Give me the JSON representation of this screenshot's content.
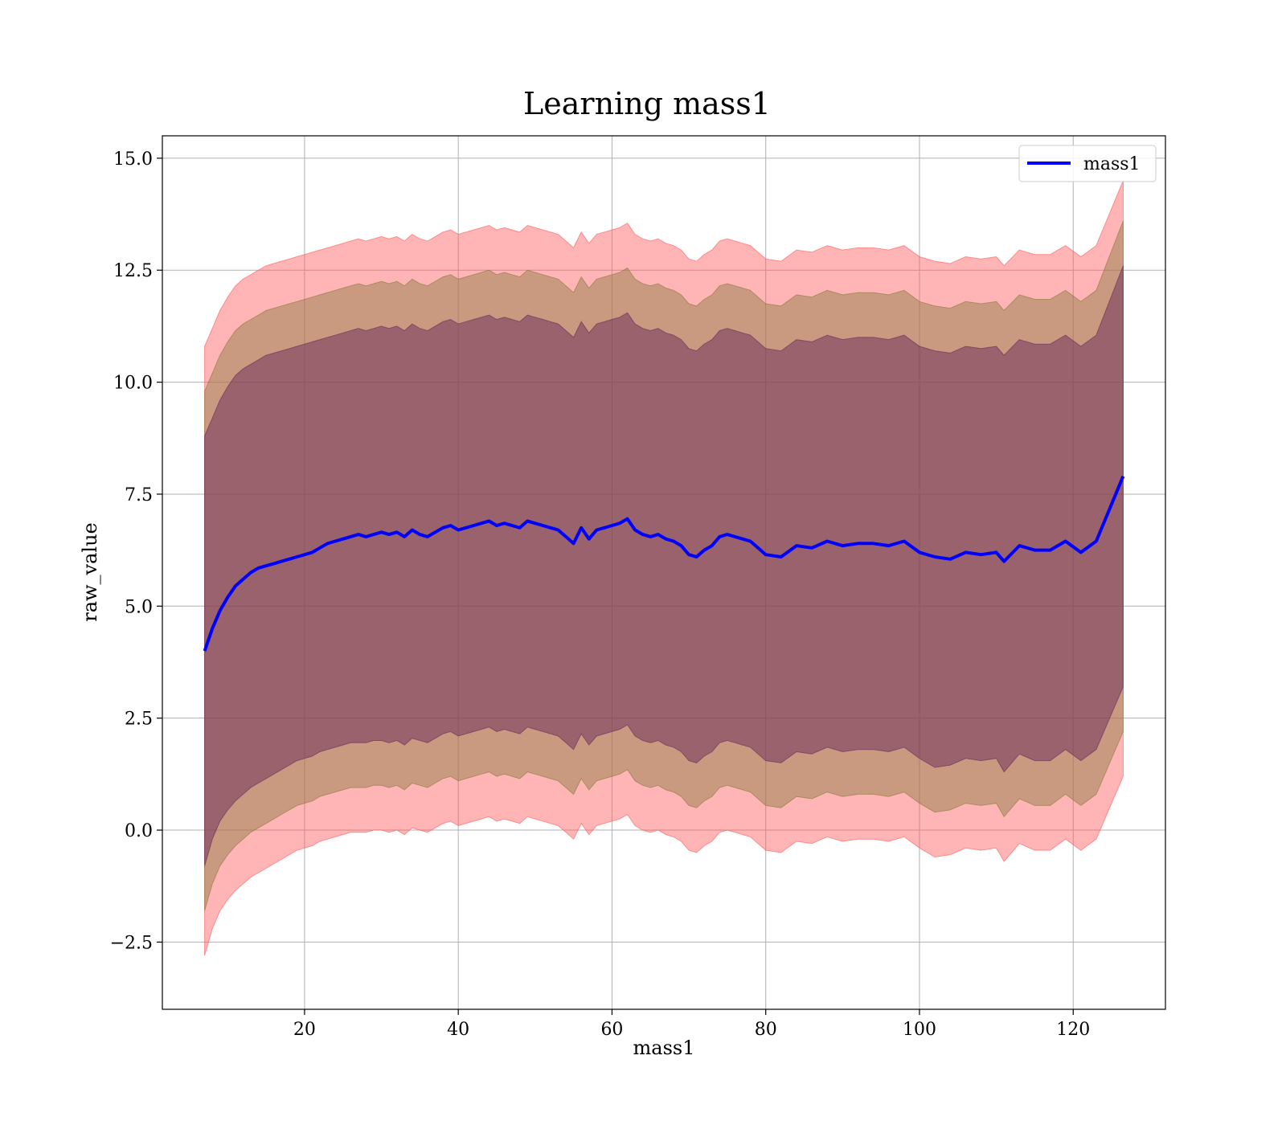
{
  "chart_data": {
    "type": "line",
    "title": "Learning mass1",
    "xlabel": "mass1",
    "ylabel": "raw_value",
    "xlim": [
      1.5,
      132
    ],
    "ylim": [
      -4.0,
      15.5
    ],
    "x_ticks": [
      20,
      40,
      60,
      80,
      100,
      120
    ],
    "y_ticks": [
      -2.5,
      0.0,
      2.5,
      5.0,
      7.5,
      10.0,
      12.5,
      15.0
    ],
    "x_tick_labels": [
      "20",
      "40",
      "60",
      "80",
      "100",
      "120"
    ],
    "y_tick_labels": [
      "−2.5",
      "0.0",
      "2.5",
      "5.0",
      "7.5",
      "10.0",
      "12.5",
      "15.0"
    ],
    "grid": true,
    "legend_position": "top-right",
    "series": [
      {
        "name": "mass1",
        "color": "#0000ff",
        "x": [
          7,
          8,
          9,
          10,
          11,
          12,
          13,
          14,
          15,
          16,
          17,
          18,
          19,
          20,
          21,
          22,
          23,
          24,
          25,
          26,
          27,
          28,
          29,
          30,
          31,
          32,
          33,
          34,
          35,
          36,
          37,
          38,
          39,
          40,
          41,
          42,
          43,
          44,
          45,
          46,
          47,
          48,
          49,
          50,
          51,
          52,
          53,
          54,
          55,
          56,
          57,
          58,
          59,
          60,
          61,
          62,
          63,
          64,
          65,
          66,
          67,
          68,
          69,
          70,
          71,
          72,
          73,
          74,
          75,
          76,
          77,
          78,
          79,
          80,
          82,
          84,
          86,
          88,
          90,
          92,
          94,
          96,
          98,
          100,
          102,
          104,
          106,
          108,
          110,
          111,
          113,
          115,
          117,
          119,
          121,
          123,
          126.5
        ],
        "y": [
          4.0,
          4.5,
          4.9,
          5.2,
          5.45,
          5.6,
          5.75,
          5.85,
          5.9,
          5.95,
          6.0,
          6.05,
          6.1,
          6.15,
          6.2,
          6.3,
          6.4,
          6.45,
          6.5,
          6.55,
          6.6,
          6.55,
          6.6,
          6.65,
          6.6,
          6.65,
          6.55,
          6.7,
          6.6,
          6.55,
          6.65,
          6.75,
          6.8,
          6.7,
          6.75,
          6.8,
          6.85,
          6.9,
          6.8,
          6.85,
          6.8,
          6.75,
          6.9,
          6.85,
          6.8,
          6.75,
          6.7,
          6.55,
          6.4,
          6.75,
          6.5,
          6.7,
          6.75,
          6.8,
          6.85,
          6.95,
          6.7,
          6.6,
          6.55,
          6.6,
          6.5,
          6.45,
          6.35,
          6.15,
          6.1,
          6.25,
          6.35,
          6.55,
          6.6,
          6.55,
          6.5,
          6.45,
          6.3,
          6.15,
          6.1,
          6.35,
          6.3,
          6.45,
          6.35,
          6.4,
          6.4,
          6.35,
          6.45,
          6.2,
          6.1,
          6.05,
          6.2,
          6.15,
          6.2,
          6.0,
          6.35,
          6.25,
          6.25,
          6.45,
          6.2,
          6.45,
          7.9
        ]
      }
    ],
    "bands": [
      {
        "name": "",
        "color": "#ff5a5a",
        "opacity": 0.45,
        "lower": [
          -2.8,
          -2.2,
          -1.8,
          -1.55,
          -1.35,
          -1.2,
          -1.05,
          -0.95,
          -0.85,
          -0.75,
          -0.65,
          -0.55,
          -0.45,
          -0.4,
          -0.35,
          -0.25,
          -0.2,
          -0.15,
          -0.1,
          -0.05,
          -0.05,
          -0.05,
          0.0,
          0.0,
          -0.05,
          0.0,
          -0.1,
          0.05,
          0.0,
          -0.05,
          0.05,
          0.15,
          0.2,
          0.1,
          0.15,
          0.2,
          0.25,
          0.3,
          0.2,
          0.25,
          0.2,
          0.15,
          0.3,
          0.25,
          0.2,
          0.15,
          0.1,
          -0.05,
          -0.2,
          0.15,
          -0.1,
          0.1,
          0.15,
          0.2,
          0.25,
          0.35,
          0.1,
          0.0,
          -0.05,
          0.0,
          -0.1,
          -0.15,
          -0.25,
          -0.45,
          -0.5,
          -0.35,
          -0.25,
          -0.05,
          0.0,
          -0.05,
          -0.1,
          -0.15,
          -0.3,
          -0.45,
          -0.5,
          -0.25,
          -0.3,
          -0.15,
          -0.25,
          -0.2,
          -0.2,
          -0.25,
          -0.15,
          -0.4,
          -0.6,
          -0.55,
          -0.4,
          -0.45,
          -0.4,
          -0.7,
          -0.3,
          -0.45,
          -0.45,
          -0.2,
          -0.45,
          -0.2,
          1.2
        ],
        "upper": [
          10.8,
          11.2,
          11.6,
          11.9,
          12.15,
          12.3,
          12.4,
          12.5,
          12.6,
          12.65,
          12.7,
          12.75,
          12.8,
          12.85,
          12.9,
          12.95,
          13.0,
          13.05,
          13.1,
          13.15,
          13.2,
          13.15,
          13.2,
          13.25,
          13.2,
          13.25,
          13.15,
          13.3,
          13.2,
          13.15,
          13.25,
          13.35,
          13.4,
          13.3,
          13.35,
          13.4,
          13.45,
          13.5,
          13.4,
          13.45,
          13.4,
          13.35,
          13.5,
          13.45,
          13.4,
          13.35,
          13.3,
          13.15,
          13.0,
          13.35,
          13.1,
          13.3,
          13.35,
          13.4,
          13.45,
          13.55,
          13.3,
          13.2,
          13.15,
          13.2,
          13.1,
          13.05,
          12.95,
          12.75,
          12.7,
          12.85,
          12.95,
          13.15,
          13.2,
          13.15,
          13.1,
          13.05,
          12.9,
          12.75,
          12.7,
          12.95,
          12.9,
          13.05,
          12.95,
          13.0,
          13.0,
          12.95,
          13.05,
          12.8,
          12.7,
          12.65,
          12.8,
          12.75,
          12.8,
          12.6,
          12.95,
          12.85,
          12.85,
          13.05,
          12.8,
          13.05,
          14.5
        ]
      },
      {
        "name": "",
        "color": "#8a7a40",
        "opacity": 0.45,
        "lower": [
          -1.8,
          -1.2,
          -0.8,
          -0.55,
          -0.35,
          -0.2,
          -0.05,
          0.05,
          0.15,
          0.25,
          0.35,
          0.45,
          0.55,
          0.6,
          0.65,
          0.75,
          0.8,
          0.85,
          0.9,
          0.95,
          0.95,
          0.95,
          1.0,
          1.0,
          0.95,
          1.0,
          0.9,
          1.05,
          1.0,
          0.95,
          1.05,
          1.15,
          1.2,
          1.1,
          1.15,
          1.2,
          1.25,
          1.3,
          1.2,
          1.25,
          1.2,
          1.15,
          1.3,
          1.25,
          1.2,
          1.15,
          1.1,
          0.95,
          0.8,
          1.15,
          0.9,
          1.1,
          1.15,
          1.2,
          1.25,
          1.35,
          1.1,
          1.0,
          0.95,
          1.0,
          0.9,
          0.85,
          0.75,
          0.55,
          0.5,
          0.65,
          0.75,
          0.95,
          1.0,
          0.95,
          0.9,
          0.85,
          0.7,
          0.55,
          0.5,
          0.75,
          0.7,
          0.85,
          0.75,
          0.8,
          0.8,
          0.75,
          0.85,
          0.6,
          0.4,
          0.45,
          0.6,
          0.55,
          0.6,
          0.3,
          0.7,
          0.55,
          0.55,
          0.8,
          0.55,
          0.8,
          2.2
        ],
        "upper": [
          9.8,
          10.2,
          10.6,
          10.9,
          11.15,
          11.3,
          11.4,
          11.5,
          11.6,
          11.65,
          11.7,
          11.75,
          11.8,
          11.85,
          11.9,
          11.95,
          12.0,
          12.05,
          12.1,
          12.15,
          12.2,
          12.15,
          12.2,
          12.25,
          12.2,
          12.25,
          12.15,
          12.3,
          12.2,
          12.15,
          12.25,
          12.35,
          12.4,
          12.3,
          12.35,
          12.4,
          12.45,
          12.5,
          12.4,
          12.45,
          12.4,
          12.35,
          12.5,
          12.45,
          12.4,
          12.35,
          12.3,
          12.15,
          12.0,
          12.35,
          12.1,
          12.3,
          12.35,
          12.4,
          12.45,
          12.55,
          12.3,
          12.2,
          12.15,
          12.2,
          12.1,
          12.05,
          11.95,
          11.75,
          11.7,
          11.85,
          11.95,
          12.15,
          12.2,
          12.15,
          12.1,
          12.05,
          11.9,
          11.75,
          11.7,
          11.95,
          11.9,
          12.05,
          11.95,
          12.0,
          12.0,
          11.95,
          12.05,
          11.8,
          11.7,
          11.65,
          11.8,
          11.75,
          11.8,
          11.6,
          11.95,
          11.85,
          11.85,
          12.05,
          11.8,
          12.05,
          13.6
        ]
      },
      {
        "name": "",
        "color": "#6a2a5a",
        "opacity": 0.5,
        "lower": [
          -0.8,
          -0.2,
          0.2,
          0.45,
          0.65,
          0.8,
          0.95,
          1.05,
          1.15,
          1.25,
          1.35,
          1.45,
          1.55,
          1.6,
          1.65,
          1.75,
          1.8,
          1.85,
          1.9,
          1.95,
          1.95,
          1.95,
          2.0,
          2.0,
          1.95,
          2.0,
          1.9,
          2.05,
          2.0,
          1.95,
          2.05,
          2.15,
          2.2,
          2.1,
          2.15,
          2.2,
          2.25,
          2.3,
          2.2,
          2.25,
          2.2,
          2.15,
          2.3,
          2.25,
          2.2,
          2.15,
          2.1,
          1.95,
          1.8,
          2.15,
          1.9,
          2.1,
          2.15,
          2.2,
          2.25,
          2.35,
          2.1,
          2.0,
          1.95,
          2.0,
          1.9,
          1.85,
          1.75,
          1.55,
          1.5,
          1.65,
          1.75,
          1.95,
          2.0,
          1.95,
          1.9,
          1.85,
          1.7,
          1.55,
          1.5,
          1.75,
          1.7,
          1.85,
          1.75,
          1.8,
          1.8,
          1.75,
          1.85,
          1.6,
          1.4,
          1.45,
          1.6,
          1.55,
          1.6,
          1.3,
          1.7,
          1.55,
          1.55,
          1.8,
          1.55,
          1.8,
          3.2
        ],
        "upper": [
          8.8,
          9.2,
          9.6,
          9.9,
          10.15,
          10.3,
          10.4,
          10.5,
          10.6,
          10.65,
          10.7,
          10.75,
          10.8,
          10.85,
          10.9,
          10.95,
          11.0,
          11.05,
          11.1,
          11.15,
          11.2,
          11.15,
          11.2,
          11.25,
          11.2,
          11.25,
          11.15,
          11.3,
          11.2,
          11.15,
          11.25,
          11.35,
          11.4,
          11.3,
          11.35,
          11.4,
          11.45,
          11.5,
          11.4,
          11.45,
          11.4,
          11.35,
          11.5,
          11.45,
          11.4,
          11.35,
          11.3,
          11.15,
          11.0,
          11.35,
          11.1,
          11.3,
          11.35,
          11.4,
          11.45,
          11.55,
          11.3,
          11.2,
          11.15,
          11.2,
          11.1,
          11.05,
          10.95,
          10.75,
          10.7,
          10.85,
          10.95,
          11.15,
          11.2,
          11.15,
          11.1,
          11.05,
          10.9,
          10.75,
          10.7,
          10.95,
          10.9,
          11.05,
          10.95,
          11.0,
          11.0,
          10.95,
          11.05,
          10.8,
          10.7,
          10.65,
          10.8,
          10.75,
          10.8,
          10.6,
          10.95,
          10.85,
          10.85,
          11.05,
          10.8,
          11.05,
          12.6
        ]
      }
    ]
  }
}
